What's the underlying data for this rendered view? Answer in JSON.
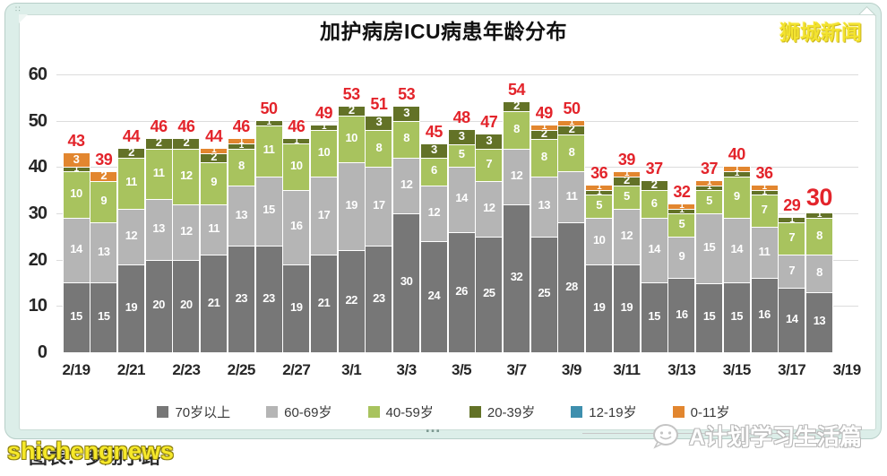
{
  "watermarks": {
    "top_right": "狮城新闻",
    "bottom_left_front": "shichengnews",
    "bottom_left_back": "图表：罗翔小路",
    "bottom_right_text": "A计划学习生活篇"
  },
  "window": {
    "bottom_handle": "…"
  },
  "chart_data": {
    "type": "bar",
    "stacked": true,
    "title": "加护病房ICU病患年龄分布",
    "xlabel": "",
    "ylabel": "",
    "ylim": [
      0,
      60
    ],
    "yticks": [
      0,
      10,
      20,
      30,
      40,
      50,
      60
    ],
    "grid": true,
    "legend_position": "bottom",
    "total_label_color": "#e3242b",
    "bar_label_color": "#ffffff",
    "highlight_last_total": true,
    "categories": [
      "2/19",
      "2/20",
      "2/21",
      "2/22",
      "2/23",
      "2/24",
      "2/25",
      "2/26",
      "2/27",
      "2/28",
      "3/1",
      "3/2",
      "3/3",
      "3/4",
      "3/5",
      "3/6",
      "3/7",
      "3/8",
      "3/9",
      "3/10",
      "3/11",
      "3/12",
      "3/13",
      "3/14",
      "3/15",
      "3/16",
      "3/17",
      "3/18"
    ],
    "x_tick_labels": [
      "2/19",
      "2/21",
      "2/23",
      "2/25",
      "2/27",
      "3/1",
      "3/3",
      "3/5",
      "3/7",
      "3/9",
      "3/11",
      "3/13",
      "3/15",
      "3/17",
      "3/19"
    ],
    "x_tick_step": 2,
    "series": [
      {
        "name": "70岁以上",
        "color": "#777777",
        "values": [
          15,
          15,
          19,
          20,
          20,
          21,
          23,
          23,
          19,
          21,
          22,
          23,
          30,
          24,
          26,
          25,
          32,
          25,
          28,
          19,
          19,
          15,
          16,
          15,
          15,
          16,
          14,
          13
        ]
      },
      {
        "name": "60-69岁",
        "color": "#b5b5b5",
        "values": [
          14,
          13,
          12,
          13,
          12,
          11,
          13,
          15,
          16,
          17,
          19,
          17,
          12,
          12,
          14,
          12,
          12,
          13,
          11,
          10,
          12,
          14,
          9,
          15,
          14,
          11,
          7,
          8
        ]
      },
      {
        "name": "40-59岁",
        "color": "#a8c35e",
        "values": [
          10,
          9,
          11,
          11,
          12,
          9,
          8,
          11,
          10,
          10,
          10,
          8,
          8,
          6,
          5,
          7,
          8,
          8,
          8,
          5,
          5,
          6,
          5,
          5,
          9,
          7,
          7,
          8
        ]
      },
      {
        "name": "20-39岁",
        "color": "#637227",
        "values": [
          1,
          0,
          2,
          2,
          2,
          2,
          1,
          1,
          1,
          1,
          2,
          3,
          3,
          3,
          3,
          3,
          2,
          2,
          2,
          1,
          2,
          2,
          1,
          1,
          1,
          1,
          1,
          1
        ]
      },
      {
        "name": "12-19岁",
        "color": "#3e8fae",
        "values": [
          0,
          0,
          0,
          0,
          0,
          0,
          0,
          0,
          0,
          0,
          0,
          0,
          0,
          0,
          0,
          0,
          0,
          0,
          0,
          0,
          0,
          0,
          0,
          0,
          0,
          0,
          0,
          0
        ]
      },
      {
        "name": "0-11岁",
        "color": "#e2862f",
        "values": [
          3,
          2,
          0,
          0,
          0,
          1,
          1,
          0,
          0,
          0,
          0,
          0,
          0,
          0,
          0,
          0,
          0,
          1,
          1,
          1,
          1,
          0,
          1,
          1,
          1,
          1,
          0,
          0
        ]
      }
    ],
    "totals": [
      43,
      39,
      44,
      46,
      46,
      44,
      46,
      50,
      46,
      49,
      53,
      51,
      53,
      45,
      48,
      47,
      54,
      49,
      50,
      36,
      39,
      37,
      32,
      37,
      40,
      36,
      29,
      30
    ]
  }
}
